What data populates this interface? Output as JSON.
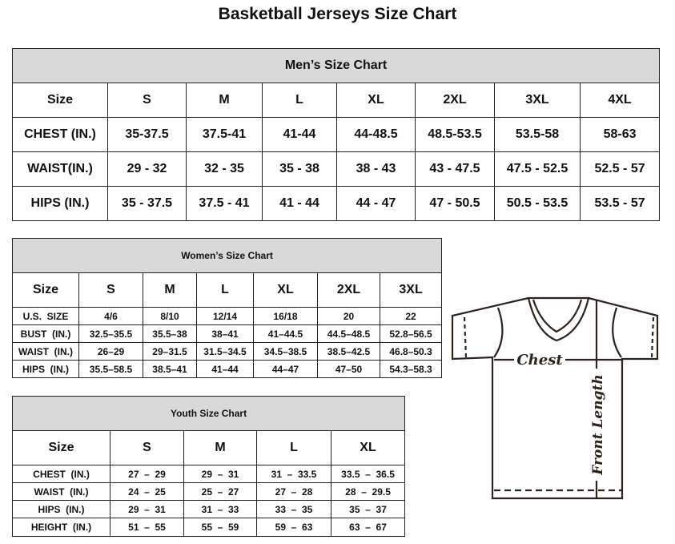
{
  "title": "Basketball Jerseys Size Chart",
  "men": {
    "heading": "Men’s Size Chart",
    "rows": [
      [
        "Size",
        "S",
        "M",
        "L",
        "XL",
        "2XL",
        "3XL",
        "4XL"
      ],
      [
        "CHEST (IN.)",
        "35-37.5",
        "37.5-41",
        "41-44",
        "44-48.5",
        "48.5-53.5",
        "53.5-58",
        "58-63"
      ],
      [
        "WAIST(IN.)",
        "29 - 32",
        "32 - 35",
        "35 - 38",
        "38 - 43",
        "43 - 47.5",
        "47.5 - 52.5",
        "52.5 - 57"
      ],
      [
        "HIPS (IN.)",
        "35 - 37.5",
        "37.5 - 41",
        "41 - 44",
        "44 - 47",
        "47 - 50.5",
        "50.5 - 53.5",
        "53.5 - 57"
      ]
    ]
  },
  "women": {
    "heading": "Women’s Size Chart",
    "rows": [
      [
        "Size",
        "S",
        "M",
        "L",
        "XL",
        "2XL",
        "3XL"
      ],
      [
        "U.S.  SIZE",
        "4/6",
        "8/10",
        "12/14",
        "16/18",
        "20",
        "22"
      ],
      [
        "BUST  (IN.)",
        "32.5–35.5",
        "35.5–38",
        "38–41",
        "41–44.5",
        "44.5–48.5",
        "52.8–56.5"
      ],
      [
        "WAIST  (IN.)",
        "26–29",
        "29–31.5",
        "31.5–34.5",
        "34.5–38.5",
        "38.5–42.5",
        "46.8–50.3"
      ],
      [
        "HIPS  (IN.)",
        "35.5–58.5",
        "38.5–41",
        "41–44",
        "44–47",
        "47–50",
        "54.3–58.3"
      ]
    ]
  },
  "youth": {
    "heading": "Youth Size Chart",
    "rows": [
      [
        "Size",
        "S",
        "M",
        "L",
        "XL"
      ],
      [
        "CHEST  (IN.)",
        "27  –  29",
        "29  –  31",
        "31  –  33.5",
        "33.5  –  36.5"
      ],
      [
        "WAIST  (IN.)",
        "24  –  25",
        "25  –  27",
        "27  –  28",
        "28  –  29.5"
      ],
      [
        "HIPS  (IN.)",
        "29  –  31",
        "31  –  33",
        "33  –  35",
        "35  –  37"
      ],
      [
        "HEIGHT  (IN.)",
        "51  –  55",
        "55  –  59",
        "59  –  63",
        "63  –  67"
      ]
    ]
  },
  "diagram": {
    "chest_label": "Chest",
    "length_label": "Front Length"
  },
  "colors": {
    "header_bg": "#d9d9d9",
    "line": "#2b2320"
  }
}
